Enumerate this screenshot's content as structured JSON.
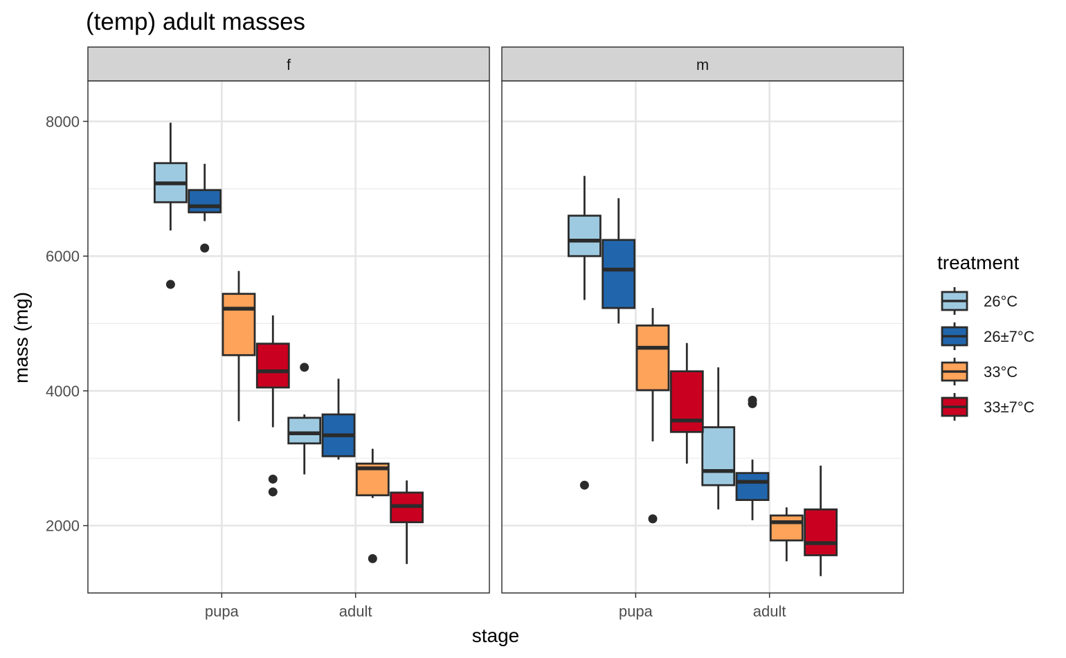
{
  "chart_data": {
    "type": "boxplot",
    "title": "(temp) adult masses",
    "xlabel": "stage",
    "ylabel": "mass (mg)",
    "ylim": [
      1000,
      8600
    ],
    "yticks": [
      2000,
      4000,
      6000,
      8000
    ],
    "grid": true,
    "legend": {
      "title": "treatment",
      "position": "right"
    },
    "categories": [
      "pupa",
      "adult"
    ],
    "panels": [
      {
        "strip": "f",
        "series": [
          {
            "name": "26°C",
            "color": "#9ECAE1",
            "boxes": [
              {
                "category": "pupa",
                "whisker_low": 6380,
                "q1": 6800,
                "median": 7080,
                "q3": 7380,
                "whisker_high": 7980,
                "outliers": [
                  5580
                ]
              },
              {
                "category": "adult",
                "whisker_low": 2760,
                "q1": 3220,
                "median": 3370,
                "q3": 3600,
                "whisker_high": 3650,
                "outliers": [
                  4350
                ]
              }
            ]
          },
          {
            "name": "26±7°C",
            "color": "#2166AC",
            "boxes": [
              {
                "category": "pupa",
                "whisker_low": 6520,
                "q1": 6650,
                "median": 6740,
                "q3": 6980,
                "whisker_high": 7370,
                "outliers": [
                  6120
                ]
              },
              {
                "category": "adult",
                "whisker_low": 2980,
                "q1": 3030,
                "median": 3340,
                "q3": 3650,
                "whisker_high": 4180,
                "outliers": []
              }
            ]
          },
          {
            "name": "33°C",
            "color": "#FDA35A",
            "boxes": [
              {
                "category": "pupa",
                "whisker_low": 3550,
                "q1": 4530,
                "median": 5220,
                "q3": 5440,
                "whisker_high": 5780,
                "outliers": []
              },
              {
                "category": "adult",
                "whisker_low": 2410,
                "q1": 2450,
                "median": 2850,
                "q3": 2920,
                "whisker_high": 3140,
                "outliers": [
                  1510
                ]
              }
            ]
          },
          {
            "name": "33±7°C",
            "color": "#CA0020",
            "boxes": [
              {
                "category": "pupa",
                "whisker_low": 3460,
                "q1": 4050,
                "median": 4290,
                "q3": 4700,
                "whisker_high": 5120,
                "outliers": [
                  2690,
                  2500
                ]
              },
              {
                "category": "adult",
                "whisker_low": 1430,
                "q1": 2050,
                "median": 2290,
                "q3": 2490,
                "whisker_high": 2670,
                "outliers": []
              }
            ]
          }
        ]
      },
      {
        "strip": "m",
        "series": [
          {
            "name": "26°C",
            "color": "#9ECAE1",
            "boxes": [
              {
                "category": "pupa",
                "whisker_low": 5350,
                "q1": 6000,
                "median": 6230,
                "q3": 6600,
                "whisker_high": 7190,
                "outliers": [
                  2600
                ]
              },
              {
                "category": "adult",
                "whisker_low": 2240,
                "q1": 2600,
                "median": 2810,
                "q3": 3460,
                "whisker_high": 4350,
                "outliers": []
              }
            ]
          },
          {
            "name": "26±7°C",
            "color": "#2166AC",
            "boxes": [
              {
                "category": "pupa",
                "whisker_low": 5000,
                "q1": 5230,
                "median": 5800,
                "q3": 6240,
                "whisker_high": 6860,
                "outliers": []
              },
              {
                "category": "adult",
                "whisker_low": 2080,
                "q1": 2380,
                "median": 2650,
                "q3": 2780,
                "whisker_high": 2980,
                "outliers": [
                  3860,
                  3810
                ]
              }
            ]
          },
          {
            "name": "33°C",
            "color": "#FDA35A",
            "boxes": [
              {
                "category": "pupa",
                "whisker_low": 3250,
                "q1": 4010,
                "median": 4640,
                "q3": 4970,
                "whisker_high": 5230,
                "outliers": [
                  2100
                ]
              },
              {
                "category": "adult",
                "whisker_low": 1470,
                "q1": 1780,
                "median": 2050,
                "q3": 2150,
                "whisker_high": 2270,
                "outliers": []
              }
            ]
          },
          {
            "name": "33±7°C",
            "color": "#CA0020",
            "boxes": [
              {
                "category": "pupa",
                "whisker_low": 2920,
                "q1": 3390,
                "median": 3560,
                "q3": 4290,
                "whisker_high": 4710,
                "outliers": []
              },
              {
                "category": "adult",
                "whisker_low": 1250,
                "q1": 1560,
                "median": 1740,
                "q3": 2240,
                "whisker_high": 2890,
                "outliers": []
              }
            ]
          }
        ]
      }
    ]
  }
}
